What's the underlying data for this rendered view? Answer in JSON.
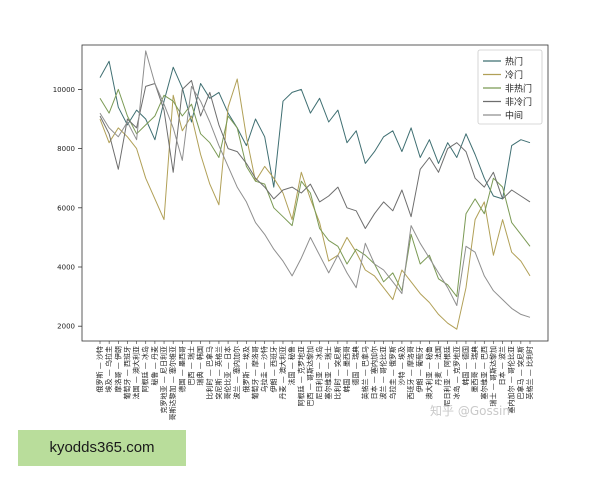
{
  "chart_data": {
    "type": "line",
    "title": "",
    "xlabel": "",
    "ylabel": "",
    "ylim": [
      1500,
      11500
    ],
    "yticks": [
      2000,
      4000,
      6000,
      8000,
      10000
    ],
    "grid": false,
    "legend_position": "top-right",
    "categories": [
      "俄罗斯 — 沙特",
      "埃及 — 乌拉圭",
      "摩洛哥 — 伊朗",
      "葡萄牙 — 西班牙",
      "法国 — 澳大利亚",
      "阿根廷 — 冰岛",
      "秘鲁 — 丹麦",
      "克罗地亚 — 尼日利亚",
      "哥斯达黎加 — 塞尔维亚",
      "德国 — 墨西哥",
      "巴西 — 瑞士",
      "瑞典 — 韩国",
      "比利时 — 巴拿马",
      "突尼斯 — 英格兰",
      "哥伦比亚 — 日本",
      "波兰 — 塞内加尔",
      "俄罗斯 — 埃及",
      "葡萄牙 — 摩洛哥",
      "乌拉圭 — 沙特",
      "伊朗 — 西班牙",
      "丹麦 — 澳大利亚",
      "法国 — 秘鲁",
      "阿根廷 — 克罗地亚",
      "巴西 — 哥斯达黎加",
      "尼日利亚 — 冰岛",
      "塞尔维亚 — 瑞士",
      "比利时 — 突尼斯",
      "韩国 — 墨西哥",
      "德国 — 瑞典",
      "英格兰 — 巴拿马",
      "日本 — 塞内加尔",
      "波兰 — 哥伦比亚",
      "乌拉圭 — 俄罗斯",
      "沙特 — 埃及",
      "西班牙 — 摩洛哥",
      "伊朗 — 葡萄牙",
      "澳大利亚 — 秘鲁",
      "丹麦 — 法国",
      "尼日利亚 — 阿根廷",
      "冰岛 — 克罗地亚",
      "韩国 — 德国",
      "墨西哥 — 瑞典",
      "塞尔维亚 — 巴西",
      "瑞士 — 哥斯达黎加",
      "日本 — 波兰",
      "塞内加尔 — 哥伦比亚",
      "巴拿马 — 突尼斯",
      "英格兰 — 比利时"
    ],
    "series": [
      {
        "name": "热门",
        "color": "#3f6f72",
        "values": [
          10400,
          10950,
          9400,
          8800,
          9300,
          9000,
          8300,
          9600,
          10750,
          10050,
          8900,
          10200,
          9700,
          9900,
          9200,
          8700,
          8100,
          9000,
          8400,
          6700,
          9600,
          9900,
          10000,
          9200,
          9700,
          8900,
          9300,
          8200,
          8600,
          7500,
          7900,
          8400,
          8600,
          7900,
          8700,
          7700,
          8300,
          7500,
          8200,
          7700,
          8500,
          7800,
          7000,
          6400,
          6300,
          8100,
          8300,
          8200
        ]
      },
      {
        "name": "冷门",
        "color": "#b1a057",
        "values": [
          9000,
          8200,
          8700,
          8400,
          8000,
          7000,
          6300,
          5600,
          9800,
          8600,
          9100,
          7800,
          6800,
          6100,
          9400,
          10350,
          8400,
          6900,
          7400,
          7000,
          6500,
          5600,
          7200,
          6300,
          5500,
          4200,
          4400,
          5000,
          4500,
          3900,
          3700,
          3300,
          2900,
          3900,
          3500,
          3100,
          2800,
          2400,
          2100,
          1900,
          3300,
          5600,
          6200,
          4400,
          5600,
          4500,
          4200,
          3700
        ]
      },
      {
        "name": "非热门",
        "color": "#7b9a55",
        "values": [
          9700,
          9200,
          10000,
          9100,
          8500,
          8800,
          9100,
          9800,
          9600,
          9100,
          9500,
          8500,
          8200,
          7700,
          9100,
          8700,
          7400,
          6900,
          6800,
          6000,
          5700,
          5400,
          6900,
          6500,
          5300,
          4900,
          4700,
          4100,
          4600,
          4400,
          4100,
          3500,
          3800,
          3200,
          5100,
          4100,
          4400,
          3600,
          3400,
          3000,
          5800,
          6300,
          5800,
          7000,
          6700,
          5500,
          5100,
          4700
        ]
      },
      {
        "name": "非冷门",
        "color": "#6e6e6e",
        "values": [
          9100,
          8500,
          7300,
          9000,
          8700,
          10100,
          10200,
          9300,
          7200,
          10000,
          10300,
          9100,
          9900,
          8800,
          8000,
          7900,
          7500,
          7000,
          6700,
          6300,
          6600,
          6700,
          6500,
          6800,
          6200,
          6400,
          6700,
          6000,
          5900,
          5300,
          5800,
          6200,
          5900,
          6600,
          5700,
          7300,
          7700,
          7200,
          8000,
          8200,
          7900,
          7000,
          6700,
          7200,
          6300,
          6600,
          6400,
          6200
        ]
      },
      {
        "name": "中间",
        "color": "#8f8f8f",
        "values": [
          9200,
          8700,
          8400,
          8900,
          8300,
          11300,
          10200,
          9500,
          8700,
          7600,
          10100,
          9600,
          8900,
          8100,
          7400,
          6700,
          6200,
          5500,
          5100,
          4600,
          4200,
          3700,
          4300,
          5000,
          4400,
          3800,
          4400,
          3800,
          3300,
          4800,
          4100,
          3900,
          3500,
          3100,
          5400,
          4800,
          4300,
          3800,
          3300,
          2700,
          4700,
          4500,
          3700,
          3200,
          2900,
          2600,
          2400,
          2300
        ]
      }
    ]
  },
  "watermark": {
    "site": "kyodds365.com",
    "credit": "知乎 @Gossin"
  }
}
